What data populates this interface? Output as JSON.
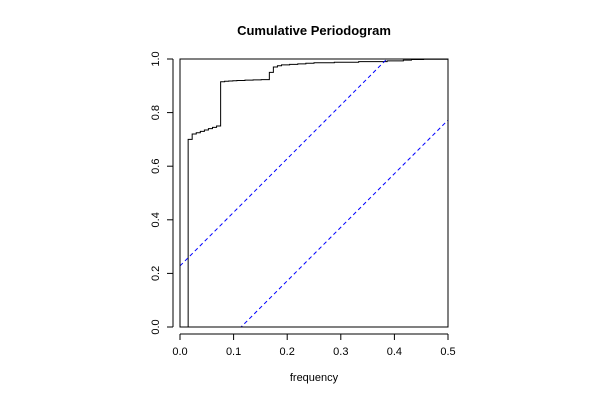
{
  "chart_data": {
    "type": "line",
    "title": "Cumulative Periodogram",
    "xlabel": "frequency",
    "ylabel": "",
    "xlim": [
      0,
      0.5
    ],
    "ylim": [
      0,
      1
    ],
    "xticks": [
      0.0,
      0.1,
      0.2,
      0.3,
      0.4,
      0.5
    ],
    "xtick_labels": [
      "0.0",
      "0.1",
      "0.2",
      "0.3",
      "0.4",
      "0.5"
    ],
    "yticks": [
      0.0,
      0.2,
      0.4,
      0.6,
      0.8,
      1.0
    ],
    "ytick_labels": [
      "0.0",
      "0.2",
      "0.4",
      "0.6",
      "0.8",
      "1.0"
    ],
    "grid": false,
    "series": [
      {
        "kind": "step",
        "color": "#000000",
        "x": [
          0.0152,
          0.0152,
          0.0227,
          0.0303,
          0.0379,
          0.0455,
          0.053,
          0.0606,
          0.0682,
          0.0758,
          0.0833,
          0.0909,
          0.0985,
          0.1061,
          0.1136,
          0.1212,
          0.1288,
          0.1364,
          0.1439,
          0.1515,
          0.1591,
          0.1667,
          0.1742,
          0.1818,
          0.1894,
          0.2045,
          0.2197,
          0.2348,
          0.25,
          0.2879,
          0.3333,
          0.3864,
          0.4167,
          0.4318,
          0.4545,
          0.5
        ],
        "y": [
          0.0,
          0.7,
          0.72,
          0.725,
          0.73,
          0.735,
          0.74,
          0.745,
          0.75,
          0.915,
          0.917,
          0.918,
          0.919,
          0.92,
          0.92,
          0.921,
          0.921,
          0.922,
          0.922,
          0.923,
          0.923,
          0.95,
          0.97,
          0.975,
          0.978,
          0.98,
          0.982,
          0.984,
          0.986,
          0.988,
          0.99,
          0.993,
          0.996,
          0.998,
          0.999,
          1.0
        ]
      },
      {
        "kind": "dashed-line",
        "color": "#0000ff",
        "intercept": 0.228,
        "slope": 2.0
      },
      {
        "kind": "dashed-line",
        "color": "#0000ff",
        "intercept": -0.228,
        "slope": 2.0
      }
    ]
  }
}
